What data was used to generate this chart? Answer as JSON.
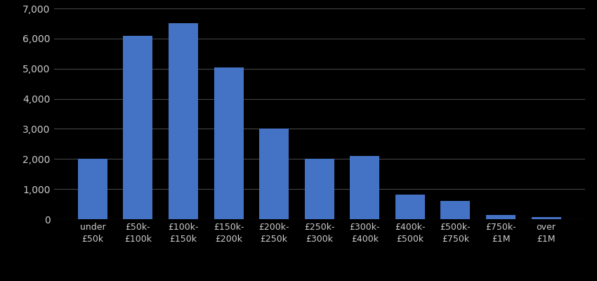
{
  "categories": [
    "under\n£50k",
    "£50k-\n£100k",
    "£100k-\n£150k",
    "£150k-\n£200k",
    "£200k-\n£250k",
    "£250k-\n£300k",
    "£300k-\n£400k",
    "£400k-\n£500k",
    "£500k-\n£750k",
    "£750k-\n£1M",
    "over\n£1M"
  ],
  "values": [
    2000,
    6100,
    6500,
    5050,
    3000,
    2000,
    2100,
    820,
    600,
    130,
    80
  ],
  "bar_color": "#4472c4",
  "background_color": "#000000",
  "text_color": "#cccccc",
  "grid_color": "#444444",
  "ylim": [
    0,
    7000
  ],
  "yticks": [
    0,
    1000,
    2000,
    3000,
    4000,
    5000,
    6000,
    7000
  ],
  "tick_fontsize": 10,
  "xlabel_fontsize": 9
}
